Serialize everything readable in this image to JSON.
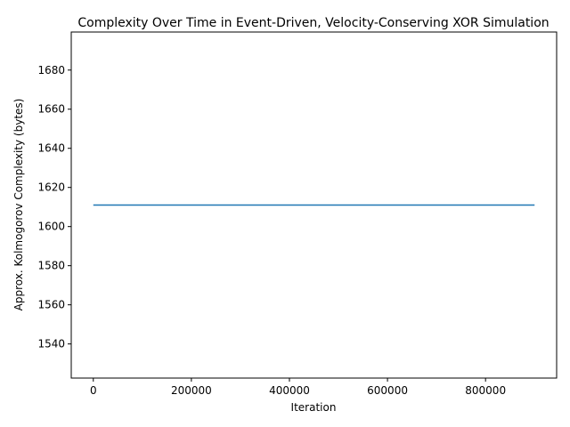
{
  "chart_data": {
    "type": "line",
    "title": "Complexity Over Time in Event-Driven, Velocity-Conserving XOR Simulation",
    "xlabel": "Iteration",
    "ylabel": "Approx. Kolmogorov Complexity (bytes)",
    "xlim": [
      -45000,
      945000
    ],
    "ylim": [
      1522.55,
      1699.45
    ],
    "x_ticks": [
      0,
      200000,
      400000,
      600000,
      800000
    ],
    "x_tick_labels": [
      "0",
      "200000",
      "400000",
      "600000",
      "800000"
    ],
    "y_ticks": [
      1540,
      1560,
      1580,
      1600,
      1620,
      1640,
      1660,
      1680
    ],
    "y_tick_labels": [
      "1540",
      "1560",
      "1580",
      "1600",
      "1620",
      "1640",
      "1660",
      "1680"
    ],
    "grid": false,
    "series": [
      {
        "color": "#1f77b4",
        "x": [
          0,
          100000,
          200000,
          300000,
          400000,
          500000,
          600000,
          700000,
          800000,
          900000
        ],
        "y": [
          1611,
          1611,
          1611,
          1611,
          1611,
          1611,
          1611,
          1611,
          1611,
          1611
        ]
      }
    ]
  }
}
